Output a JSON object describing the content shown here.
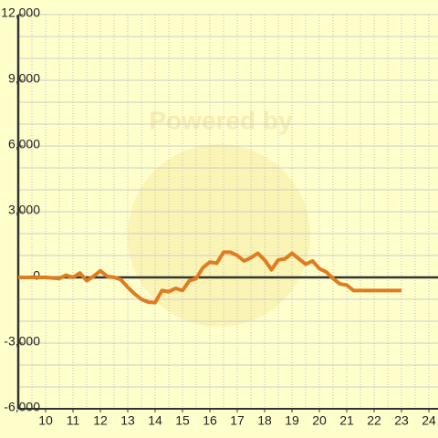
{
  "chart_data": {
    "type": "line",
    "watermark": "Powered by",
    "x": [
      9,
      10,
      10.5,
      10.75,
      11,
      11.25,
      11.5,
      11.75,
      12,
      12.25,
      12.5,
      12.75,
      13,
      13.25,
      13.5,
      13.75,
      14,
      14.25,
      14.5,
      14.75,
      15,
      15.25,
      15.5,
      15.75,
      16,
      16.25,
      16.5,
      16.75,
      17,
      17.25,
      17.5,
      17.75,
      18,
      18.25,
      18.5,
      18.75,
      19,
      19.25,
      19.5,
      19.75,
      20,
      20.25,
      20.5,
      20.75,
      21,
      21.25,
      21.5,
      22,
      22.5,
      23
    ],
    "series": [
      {
        "color": "#e07b20",
        "values": [
          0,
          0,
          -50,
          100,
          0,
          200,
          -150,
          50,
          300,
          50,
          0,
          -100,
          -450,
          -750,
          -1000,
          -1125,
          -1150,
          -600,
          -650,
          -500,
          -600,
          -150,
          -50,
          450,
          700,
          650,
          1150,
          1150,
          1000,
          750,
          900,
          1100,
          800,
          350,
          800,
          850,
          1100,
          850,
          600,
          750,
          400,
          250,
          -50,
          -300,
          -350,
          -600,
          -600,
          -600,
          -600,
          -600
        ]
      }
    ],
    "xlim": [
      9,
      24.3
    ],
    "xticks": [
      10,
      11,
      12,
      13,
      14,
      15,
      16,
      17,
      18,
      19,
      20,
      21,
      22,
      23,
      24
    ],
    "x_grid_lines": [
      9.5,
      10,
      10.5,
      11,
      11.5,
      12,
      12.5,
      13,
      13.5,
      14,
      14.5,
      15,
      15.5,
      16,
      16.5,
      17,
      17.5,
      18,
      18.5,
      19,
      19.5,
      20,
      20.5,
      21,
      21.5,
      22,
      22.5,
      23,
      23.5,
      24
    ],
    "ylim": [
      -6000,
      12000
    ],
    "yticks": [
      {
        "value": -6000,
        "label": "-6,000"
      },
      {
        "value": -3000,
        "label": "-3,000"
      },
      0,
      {
        "value": 3000,
        "label": "3,000"
      },
      {
        "value": 6000,
        "label": "6,000"
      },
      {
        "value": 9000,
        "label": "9,000"
      },
      {
        "value": 12000,
        "label": "12,000"
      }
    ],
    "y_grid_lines": [
      -5000,
      -4000,
      -3000,
      -2000,
      -1000,
      1000,
      2000,
      3000,
      4000,
      5000,
      6000,
      7000,
      8000,
      9000,
      10000,
      11000,
      12000
    ]
  }
}
